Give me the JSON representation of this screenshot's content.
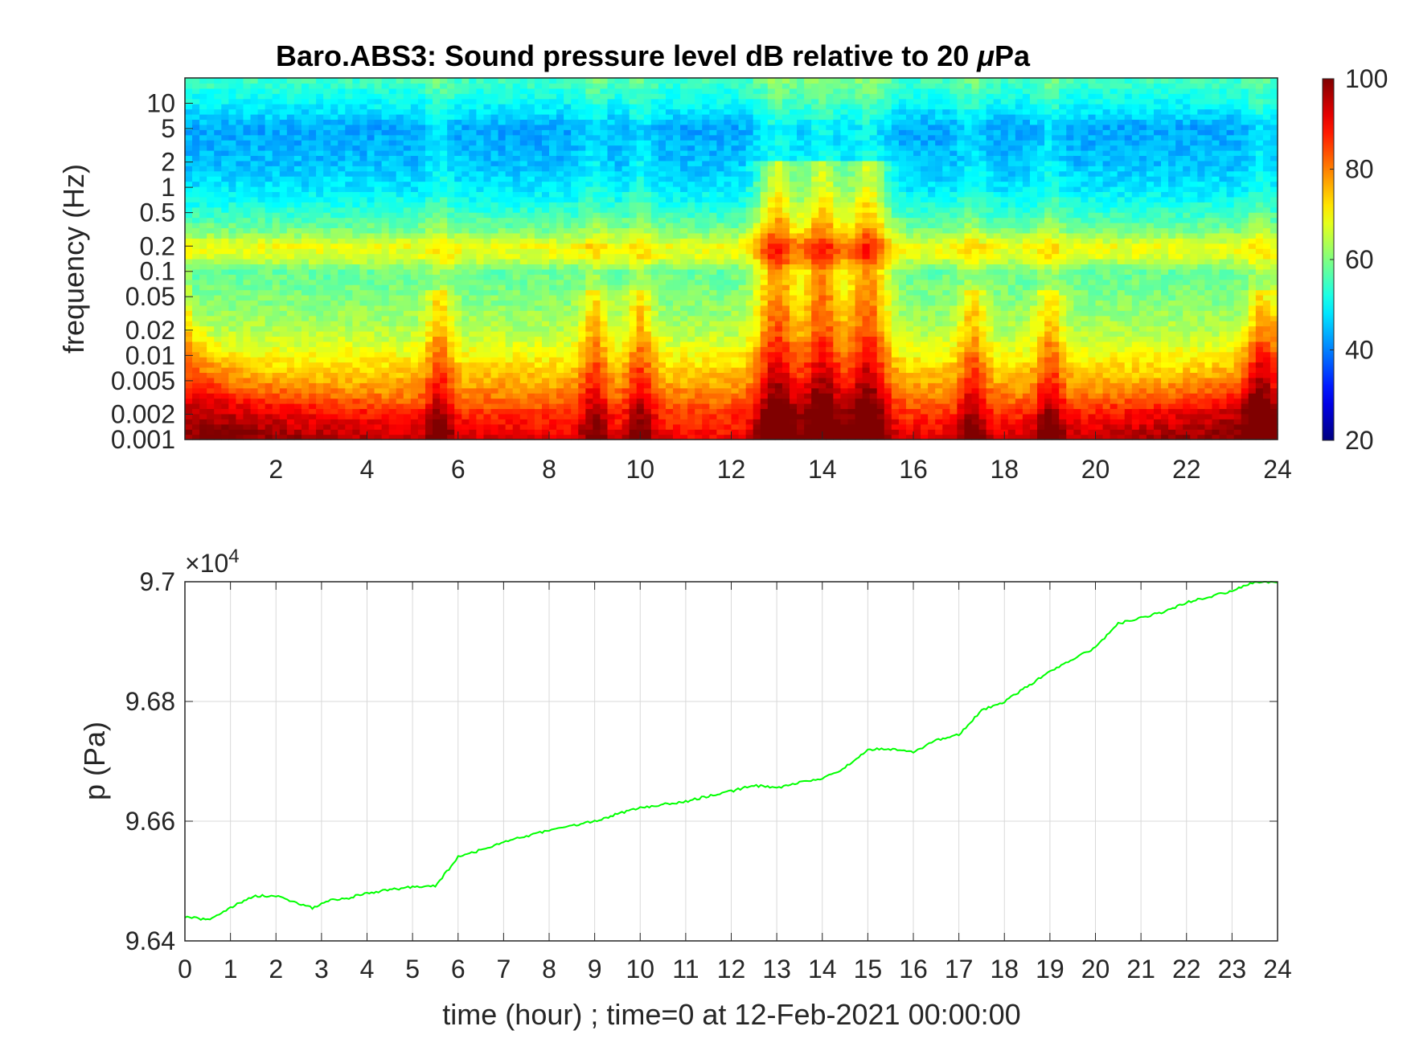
{
  "chart_data": [
    {
      "type": "heatmap",
      "title_main": "Baro.ABS3: Sound pressure level dB relative to 20 ",
      "title_mu": "μ",
      "title_end": "Pa",
      "ylabel": "frequency (Hz)",
      "xlim": [
        0,
        24
      ],
      "x_ticks": [
        "2",
        "4",
        "6",
        "8",
        "10",
        "12",
        "14",
        "16",
        "18",
        "20",
        "22",
        "24"
      ],
      "x_tick_values": [
        2,
        4,
        6,
        8,
        10,
        12,
        14,
        16,
        18,
        20,
        22,
        24
      ],
      "y_scale": "log",
      "ylim": [
        0.001,
        20
      ],
      "y_ticks": [
        "0.001",
        "0.002",
        "0.005",
        "0.01",
        "0.02",
        "0.05",
        "0.1",
        "0.2",
        "0.5",
        "1",
        "2",
        "5",
        "10"
      ],
      "y_tick_values": [
        0.001,
        0.002,
        0.005,
        0.01,
        0.02,
        0.05,
        0.1,
        0.2,
        0.5,
        1,
        2,
        5,
        10
      ],
      "colorbar": {
        "colormap": "jet",
        "clim": [
          20,
          100
        ],
        "ticks": [
          "20",
          "40",
          "60",
          "80",
          "100"
        ],
        "tick_values": [
          20,
          40,
          60,
          80,
          100
        ]
      },
      "level_profile_db": {
        "frequencies_hz": [
          0.001,
          0.002,
          0.005,
          0.01,
          0.02,
          0.05,
          0.1,
          0.15,
          0.2,
          0.3,
          0.5,
          1,
          2,
          5,
          10,
          20
        ],
        "baseline": [
          90,
          86,
          76,
          70,
          64,
          60,
          58,
          67,
          69,
          60,
          54,
          48,
          45,
          43,
          50,
          55
        ]
      },
      "hotspots_hour": [
        5.6,
        9.0,
        10.0,
        13.0,
        14.0,
        15.0,
        17.3,
        19.0,
        23.6
      ]
    },
    {
      "type": "line",
      "ylabel": "p (Pa)",
      "xlabel": "time (hour) ; time=0 at 12-Feb-2021 00:00:00",
      "xlim": [
        0,
        24
      ],
      "ylim": [
        96400,
        97000
      ],
      "y_exponent_label": "×10",
      "y_exponent_power": "4",
      "x_ticks": [
        "0",
        "1",
        "2",
        "3",
        "4",
        "5",
        "6",
        "7",
        "8",
        "9",
        "10",
        "11",
        "12",
        "13",
        "14",
        "15",
        "16",
        "17",
        "18",
        "19",
        "20",
        "21",
        "22",
        "23",
        "24"
      ],
      "y_ticks": [
        "9.64",
        "9.66",
        "9.68",
        "9.7"
      ],
      "y_tick_values": [
        96400,
        96600,
        96800,
        97000
      ],
      "grid": true,
      "series": [
        {
          "color": "#00ff00",
          "x": [
            0,
            0.5,
            1.0,
            1.5,
            2.0,
            2.4,
            2.8,
            3.2,
            3.6,
            4.0,
            4.5,
            5.0,
            5.5,
            5.8,
            6.0,
            6.5,
            7.0,
            7.5,
            8.0,
            8.5,
            9.0,
            9.5,
            10.0,
            10.5,
            11.0,
            11.5,
            12.0,
            12.5,
            13.0,
            13.5,
            14.0,
            14.5,
            15.0,
            15.5,
            16.0,
            16.5,
            17.0,
            17.5,
            18.0,
            18.5,
            19.0,
            19.5,
            20.0,
            20.5,
            21.0,
            21.5,
            22.0,
            22.5,
            23.0,
            23.5,
            24.0
          ],
          "values": [
            96440,
            96435,
            96455,
            96475,
            96475,
            96465,
            96455,
            96468,
            96472,
            96480,
            96485,
            96490,
            96492,
            96520,
            96540,
            96552,
            96565,
            96575,
            96585,
            96592,
            96600,
            96612,
            96622,
            96628,
            96633,
            96642,
            96650,
            96660,
            96655,
            96665,
            96670,
            96690,
            96720,
            96720,
            96715,
            96735,
            96745,
            96785,
            96800,
            96825,
            96850,
            96870,
            96890,
            96930,
            96940,
            96950,
            96965,
            96975,
            96985,
            97000,
            97000
          ]
        }
      ]
    }
  ]
}
